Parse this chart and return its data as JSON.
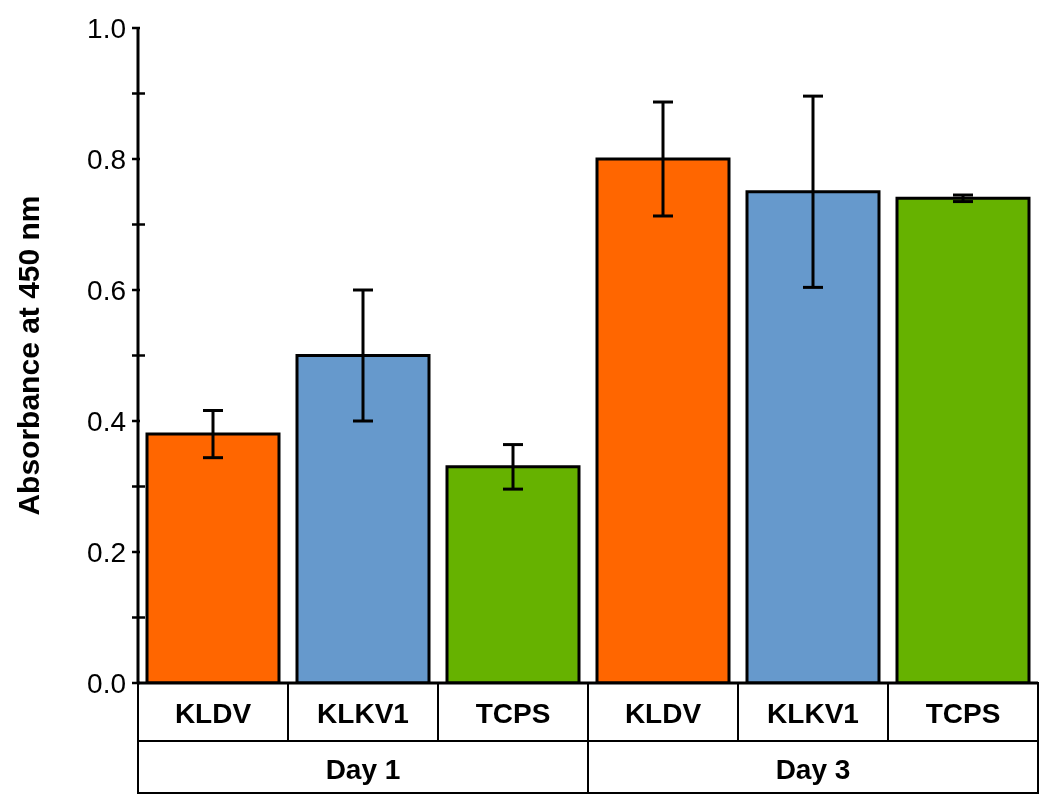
{
  "chart_data": {
    "type": "bar",
    "ylabel": "Absorbance at 450 nm",
    "categories": [
      "KLDV",
      "KLKV1",
      "TCPS",
      "KLDV",
      "KLKV1",
      "TCPS"
    ],
    "values": [
      0.38,
      0.5,
      0.33,
      0.8,
      0.75,
      0.74
    ],
    "errors": [
      0.036,
      0.1,
      0.034,
      0.087,
      0.146,
      0.005
    ],
    "colors": [
      "#ff6600",
      "#6699cc",
      "#66b200",
      "#ff6600",
      "#6699cc",
      "#66b200"
    ],
    "annotations": [
      "Day 1",
      "Day 3"
    ],
    "ylim": [
      0,
      1
    ],
    "yticks": [
      {
        "value": 0,
        "label": "0.0"
      },
      {
        "value": 0.1,
        "label": null
      },
      {
        "value": 0.2,
        "label": "0.2"
      },
      {
        "value": 0.3,
        "label": null
      },
      {
        "value": 0.4,
        "label": "0.4"
      },
      {
        "value": 0.5,
        "label": null
      },
      {
        "value": 0.6,
        "label": "0.6"
      },
      {
        "value": 0.7,
        "label": null
      },
      {
        "value": 0.8,
        "label": "0.8"
      },
      {
        "value": 0.9,
        "label": null
      },
      {
        "value": 1,
        "label": "1.0"
      }
    ],
    "grid": false,
    "legend": false
  }
}
